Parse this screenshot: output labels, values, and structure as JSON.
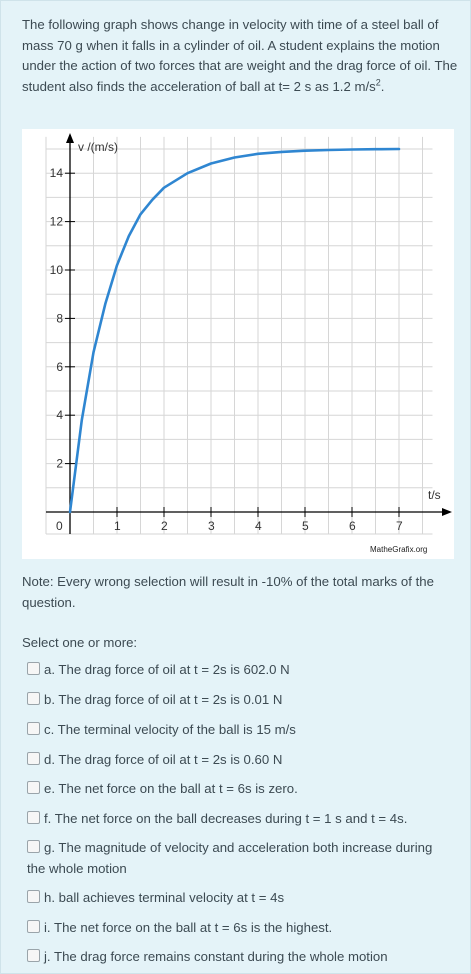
{
  "question": {
    "text_main": "The following graph shows change in velocity with time of a steel ball of mass 70 g when it falls in a cylinder of  oil. A student explains the motion under the action of two forces that are weight and the drag force of oil. The student also finds the acceleration of ball at t= 2 s as 1.2 m/s",
    "text_sup": "2",
    "text_end": "."
  },
  "chart_data": {
    "type": "line",
    "ylabel": "v /(m/s)",
    "xlabel": "t/s",
    "origin_label": "0",
    "xlim": [
      0,
      7.5
    ],
    "ylim": [
      0,
      15.5
    ],
    "x_ticks": [
      "1",
      "2",
      "3",
      "4",
      "5",
      "6",
      "7"
    ],
    "y_ticks": [
      "2",
      "4",
      "6",
      "8",
      "10",
      "12",
      "14"
    ],
    "grid": true,
    "credit": "MatheGrafix.org",
    "line_color": "#2f86d1",
    "series": [
      {
        "x": [
          0,
          0.25,
          0.5,
          0.75,
          1,
          1.25,
          1.5,
          1.75,
          2,
          2.5,
          3,
          3.5,
          4,
          4.5,
          5,
          5.5,
          6,
          6.5,
          7
        ],
        "values": [
          0,
          3.8,
          6.6,
          8.6,
          10.2,
          11.4,
          12.3,
          12.9,
          13.4,
          14.0,
          14.4,
          14.65,
          14.8,
          14.88,
          14.93,
          14.96,
          14.98,
          14.99,
          15.0
        ]
      }
    ]
  },
  "note": "Note: Every wrong selection will result in -10% of the total marks of the question.",
  "select_label": "Select one or more:",
  "options": [
    "a. The drag force of oil at t = 2s is 602.0 N",
    "b. The drag force of oil at t = 2s is 0.01 N",
    "c. The terminal velocity of the ball is 15 m/s",
    "d. The drag force of oil at t = 2s is 0.60 N",
    "e. The net force on the ball at t = 6s is zero.",
    "f. The net force on the ball decreases during t = 1 s and t = 4s.",
    "g. The magnitude of velocity and acceleration both increase during the whole motion",
    "h. ball achieves terminal velocity at t = 4s",
    "i. The net force on the ball at t = 6s is the highest.",
    "j. The drag force remains constant during the whole motion"
  ]
}
